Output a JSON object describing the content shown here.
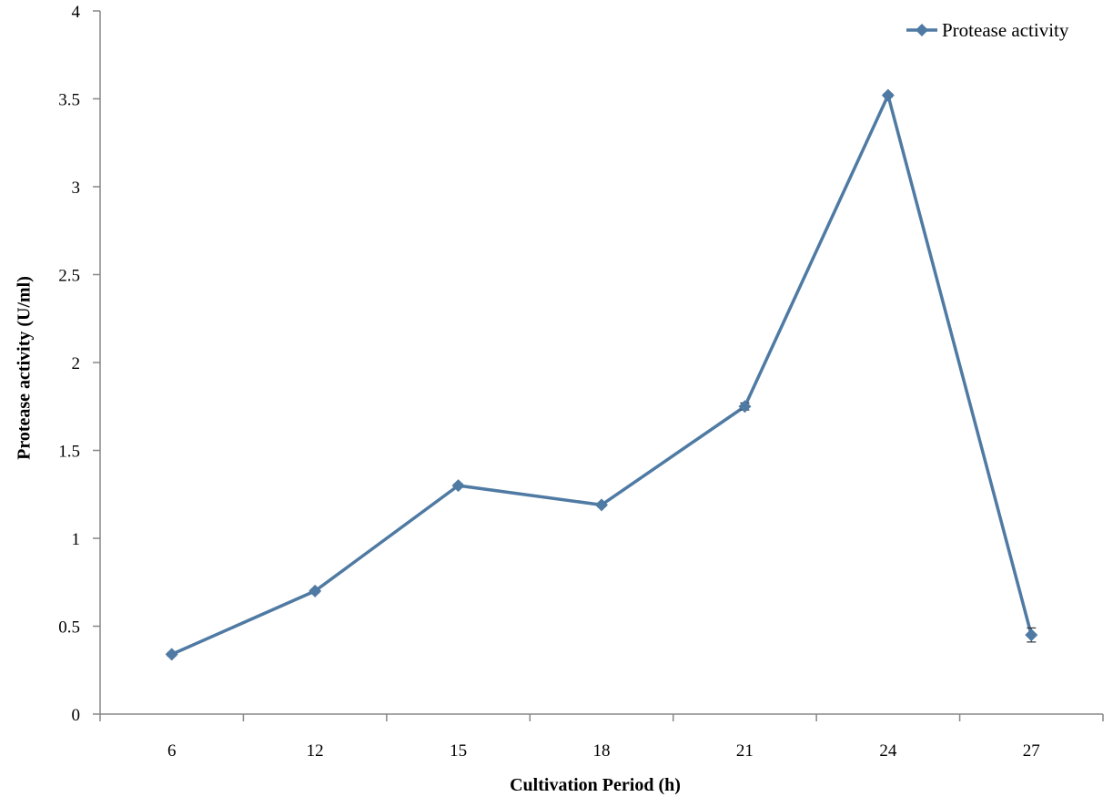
{
  "chart_data": {
    "type": "line",
    "title": "",
    "xlabel": "Cultivation Period (h)",
    "ylabel": "Protease activity (U/ml)",
    "categories": [
      "6",
      "12",
      "15",
      "18",
      "21",
      "24",
      "27"
    ],
    "series": [
      {
        "name": "Protease activity",
        "values": [
          0.34,
          0.7,
          1.3,
          1.19,
          1.75,
          3.52,
          0.45
        ],
        "error": [
          0.01,
          0.01,
          0.01,
          0.01,
          0.02,
          0.01,
          0.04
        ],
        "color": "#4f7aa3",
        "marker": "diamond"
      }
    ],
    "ylim": [
      0,
      4
    ],
    "yticks": [
      "0",
      "0.5",
      "1",
      "1.5",
      "2",
      "2.5",
      "3",
      "3.5",
      "4"
    ],
    "grid": false,
    "legend": {
      "position": "top-right"
    }
  }
}
